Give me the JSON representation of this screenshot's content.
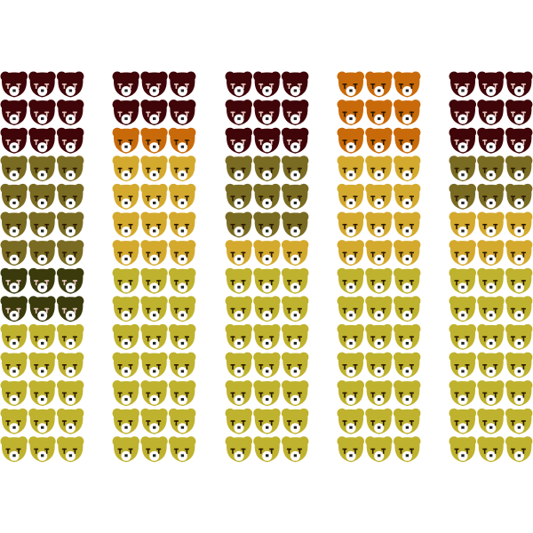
{
  "chart_data": {
    "type": "pictograph",
    "icon": "bear-face-icon",
    "icons_per_row": 3,
    "palette": {
      "M": "#3f0508",
      "O": "#c96a0a",
      "K": "#7a6b22",
      "G": "#d4aa2e",
      "Y": "#bfb22e",
      "D": "#3a3a0c"
    },
    "columns": [
      {
        "rows": [
          "M",
          "M",
          "M",
          "K",
          "K",
          "K",
          "K",
          "D",
          "D",
          "Y",
          "Y",
          "Y",
          "Y",
          "Y"
        ]
      },
      {
        "rows": [
          "M",
          "M",
          "O",
          "G",
          "G",
          "G",
          "G",
          "Y",
          "Y",
          "Y",
          "Y",
          "Y",
          "Y",
          "Y"
        ]
      },
      {
        "rows": [
          "M",
          "M",
          "M",
          "K",
          "K",
          "K",
          "G",
          "Y",
          "Y",
          "Y",
          "Y",
          "Y",
          "Y",
          "Y"
        ]
      },
      {
        "rows": [
          "O",
          "O",
          "O",
          "G",
          "G",
          "G",
          "G",
          "Y",
          "Y",
          "Y",
          "Y",
          "Y",
          "Y",
          "Y"
        ]
      },
      {
        "rows": [
          "M",
          "M",
          "M",
          "K",
          "K",
          "G",
          "G",
          "Y",
          "Y",
          "Y",
          "Y",
          "Y",
          "Y",
          "Y"
        ]
      }
    ]
  }
}
